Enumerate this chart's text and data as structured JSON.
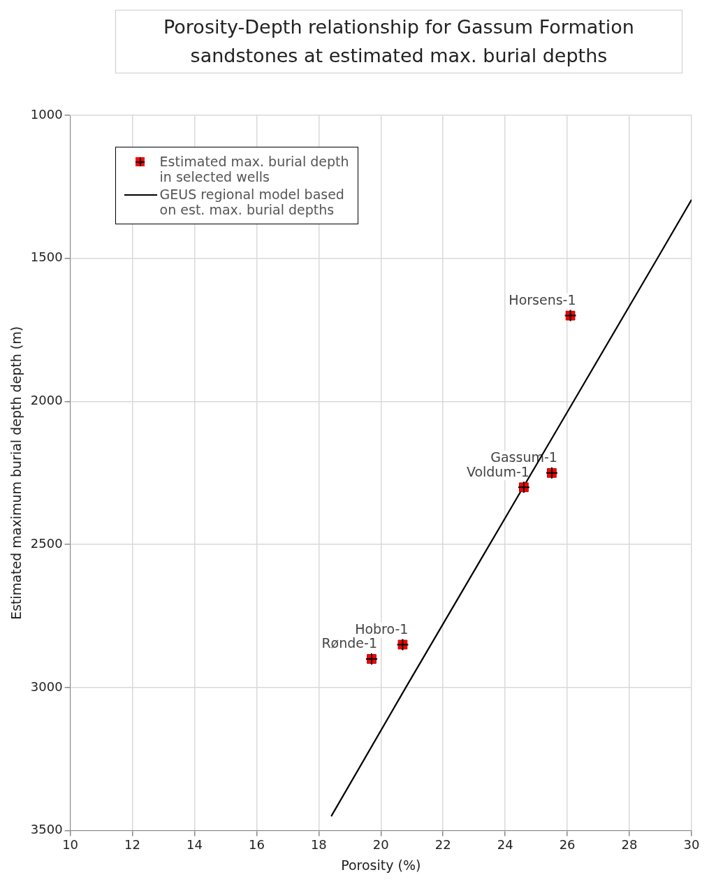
{
  "chart_data": {
    "type": "scatter",
    "title": "Porosity-Depth relationship for Gassum Formation sandstones at estimated max. burial depths",
    "xlabel": "Porosity (%)",
    "ylabel": "Estimated maximum burial depth depth (m)",
    "xlim": [
      10,
      30
    ],
    "xticks": [
      10,
      12,
      14,
      16,
      18,
      20,
      22,
      24,
      26,
      28,
      30
    ],
    "ylim": [
      3500,
      1000
    ],
    "yticks": [
      1000,
      1500,
      2000,
      2500,
      3000,
      3500
    ],
    "grid": true,
    "legend": "top left",
    "series": [
      {
        "name": "Estimated max. burial depth in selected wells",
        "type": "scatter",
        "marker": "square",
        "color": "#ff0000",
        "x": [
          26.1,
          25.5,
          24.6,
          20.7,
          19.7
        ],
        "values": [
          1700,
          2250,
          2300,
          2850,
          2900
        ]
      },
      {
        "name": "GEUS regional model based on est. max. burial depths",
        "type": "line",
        "marker": "none",
        "line_style": "solid",
        "color": "#000000",
        "x": [
          18.4,
          20.8,
          23.5,
          26.2,
          28.9,
          30
        ],
        "values": [
          3450,
          3000,
          2500,
          2000,
          1500,
          1295
        ]
      }
    ],
    "annotations": [
      {
        "text": "Horsens-1",
        "x": 26.1,
        "y": 1700
      },
      {
        "text": "Gassum-1",
        "x": 25.5,
        "y": 2250
      },
      {
        "text": "Voldum-1",
        "x": 24.6,
        "y": 2300
      },
      {
        "text": "Hobro-1",
        "x": 20.7,
        "y": 2850
      },
      {
        "text": "Rønde-1",
        "x": 19.7,
        "y": 2900
      }
    ]
  }
}
